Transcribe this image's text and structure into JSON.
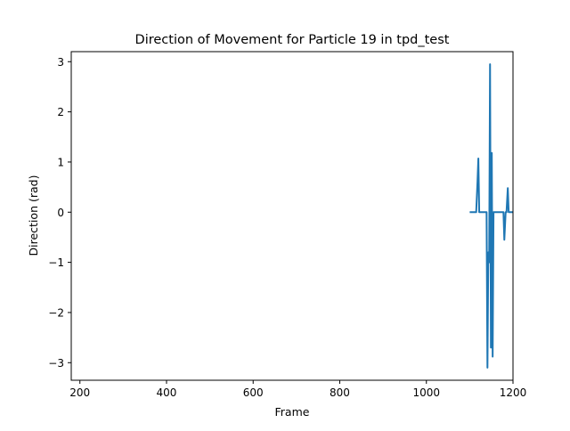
{
  "chart_data": {
    "type": "line",
    "title": "Direction of Movement for Particle 19 in tpd_test",
    "xlabel": "Frame",
    "ylabel": "Direction (rad)",
    "xlim": [
      180,
      1200
    ],
    "ylim": [
      -3.35,
      3.2
    ],
    "xticks": [
      200,
      400,
      600,
      800,
      1000,
      1200
    ],
    "yticks": [
      -3,
      -2,
      -1,
      0,
      1,
      2,
      3
    ],
    "grid": false,
    "series": [
      {
        "color": "#1f77b4",
        "x": [
          1100,
          1105,
          1110,
          1115,
          1118,
          1120,
          1122,
          1125,
          1130,
          1135,
          1139,
          1141,
          1143,
          1145,
          1147,
          1149,
          1151,
          1153,
          1155,
          1157,
          1160,
          1165,
          1170,
          1175,
          1178,
          1180,
          1183,
          1185,
          1188,
          1190,
          1192,
          1195,
          1200
        ],
        "y": [
          0,
          0,
          0,
          0,
          0.6,
          1.07,
          0,
          0,
          0,
          0,
          0,
          -3.1,
          -0.8,
          -1.0,
          2.95,
          -2.7,
          1.18,
          -2.88,
          0,
          0,
          0,
          0,
          0,
          0,
          0,
          -0.55,
          0,
          0,
          0.48,
          0,
          0,
          0,
          0
        ]
      }
    ]
  }
}
